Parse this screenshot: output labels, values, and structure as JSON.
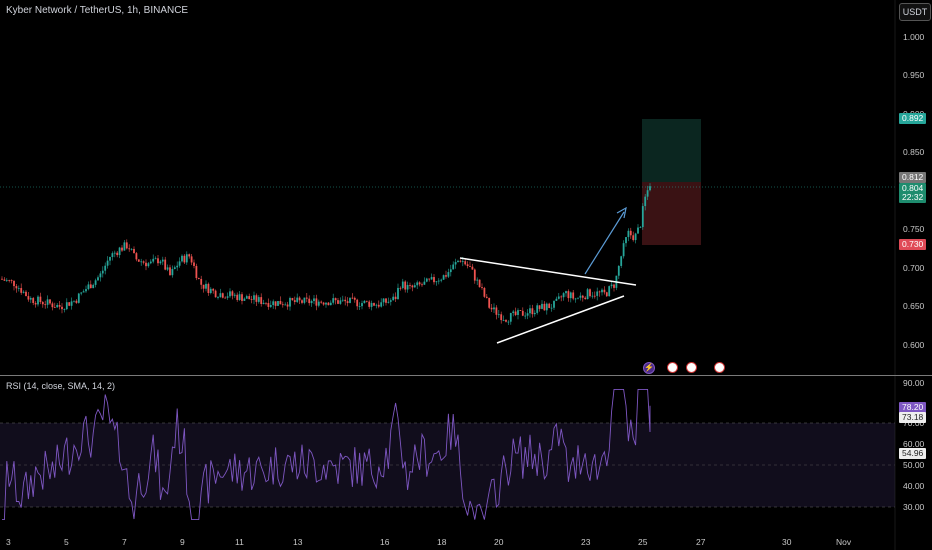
{
  "header": {
    "title": "Kyber Network / TetherUS, 1h, BINANCE",
    "currency_button": "USDT"
  },
  "price_axis": {
    "ticks": [
      "1.000",
      "0.950",
      "0.900",
      "0.850",
      "0.750",
      "0.700",
      "0.650",
      "0.600"
    ],
    "tags": {
      "target": "0.892",
      "last_a": "0.812",
      "last_b": "0.804",
      "countdown": "22:32",
      "stop": "0.730"
    }
  },
  "rsi": {
    "label": "RSI (14, close, SMA, 14, 2)",
    "ticks": [
      "90.00",
      "80.00",
      "70.00",
      "60.00",
      "50.00",
      "40.00",
      "30.00"
    ],
    "tags": {
      "rsi": "78.20",
      "sma": "73.18",
      "mid": "54.96"
    }
  },
  "time_axis": {
    "ticks": [
      "3",
      "5",
      "7",
      "9",
      "11",
      "13",
      "16",
      "18",
      "20",
      "23",
      "25",
      "27",
      "30",
      "Nov"
    ]
  },
  "colors": {
    "up": "#26a69a",
    "down": "#ef5350",
    "rsi_line": "#7e57c2",
    "target_zone": "#0d2a24",
    "stop_zone": "#3b1416",
    "trendline": "#ffffff",
    "arrow": "#5b9bd5"
  },
  "icons": [
    "flash-icon",
    "economic-event-icon"
  ]
}
